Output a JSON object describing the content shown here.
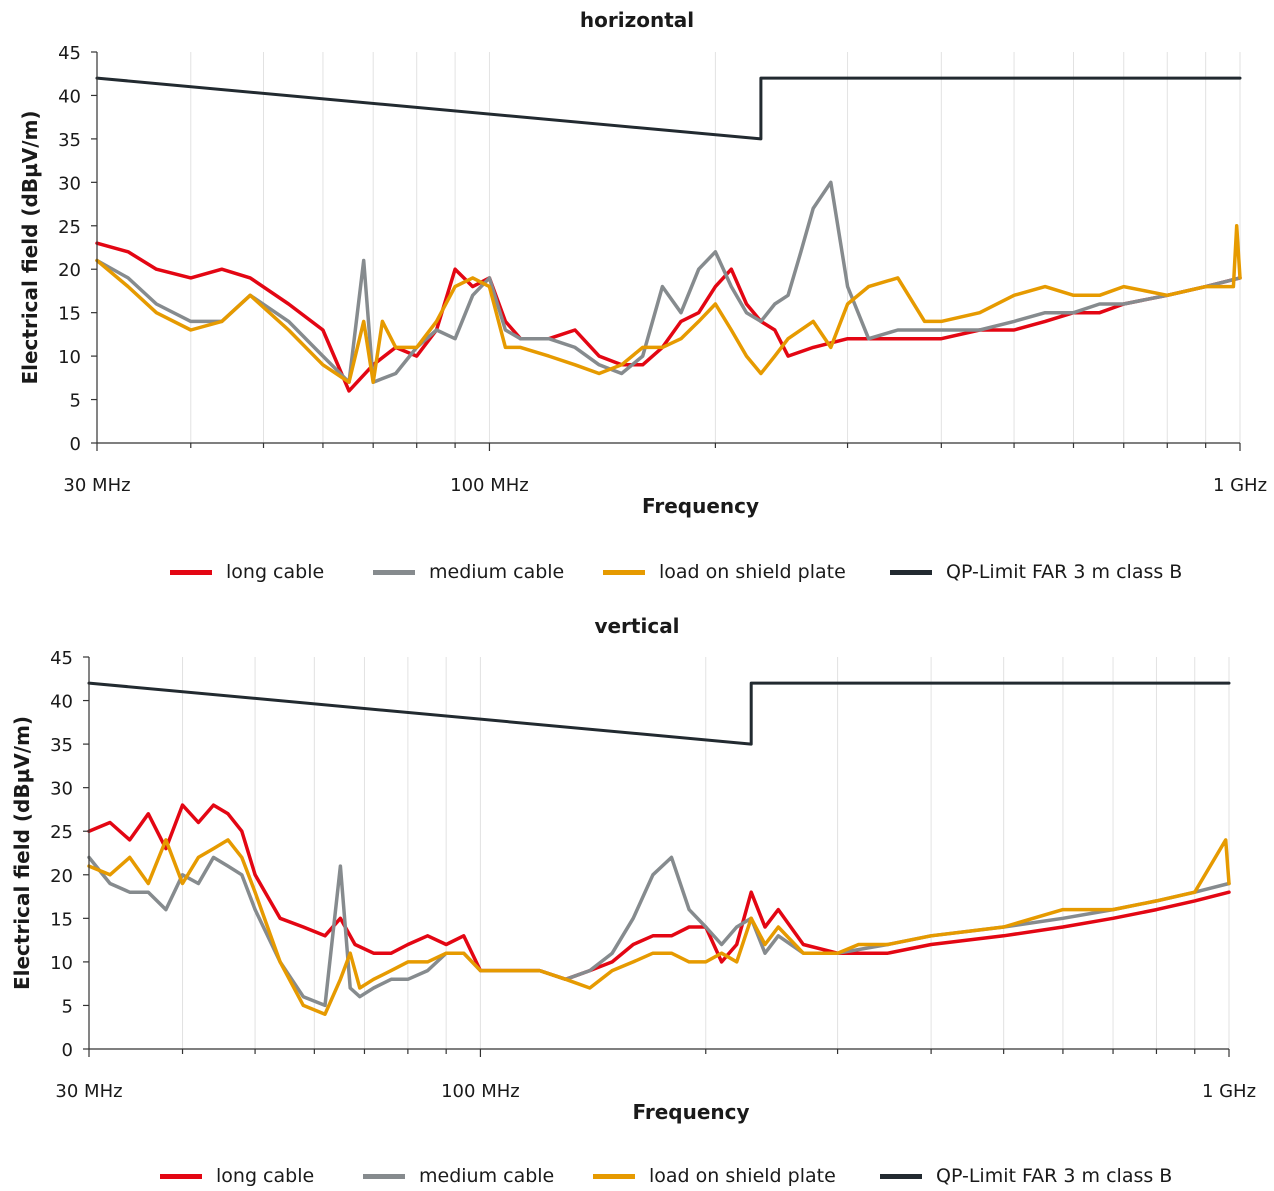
{
  "chart_data": [
    {
      "type": "line",
      "title": "horizontal",
      "xlabel": "Frequency",
      "ylabel": "Electrical field (dBµV/m)",
      "x_scale": "log",
      "xlim_mhz": [
        30,
        1000
      ],
      "ylim": [
        0,
        45
      ],
      "y_ticks": [
        0,
        5,
        10,
        15,
        20,
        25,
        30,
        35,
        40,
        45
      ],
      "x_tick_labels": [
        {
          "x": 30,
          "label": "30 MHz"
        },
        {
          "x": 100,
          "label": "100 MHz"
        },
        {
          "x": 1000,
          "label": "1 GHz"
        }
      ],
      "grid": true,
      "legend_position": "bottom",
      "series": [
        {
          "name": "long cable",
          "color": "#e30613",
          "x": [
            30,
            33,
            36,
            40,
            44,
            48,
            54,
            60,
            65,
            70,
            75,
            80,
            85,
            90,
            95,
            100,
            105,
            110,
            120,
            130,
            140,
            150,
            160,
            170,
            180,
            190,
            200,
            210,
            220,
            230,
            240,
            250,
            270,
            300,
            350,
            400,
            450,
            500,
            550,
            600,
            650,
            700,
            800,
            900,
            1000
          ],
          "y": [
            23,
            22,
            20,
            19,
            20,
            19,
            16,
            13,
            6,
            9,
            11,
            10,
            13,
            20,
            18,
            19,
            14,
            12,
            12,
            13,
            10,
            9,
            9,
            11,
            14,
            15,
            18,
            20,
            16,
            14,
            13,
            10,
            11,
            12,
            12,
            12,
            13,
            13,
            14,
            15,
            15,
            16,
            17,
            18,
            19
          ]
        },
        {
          "name": "medium cable",
          "color": "#868b8e",
          "x": [
            30,
            33,
            36,
            40,
            44,
            48,
            54,
            60,
            65,
            68,
            70,
            75,
            80,
            85,
            90,
            95,
            100,
            105,
            110,
            120,
            130,
            140,
            150,
            160,
            170,
            180,
            190,
            200,
            210,
            220,
            230,
            240,
            250,
            260,
            270,
            285,
            300,
            320,
            350,
            400,
            450,
            500,
            550,
            600,
            650,
            700,
            800,
            900,
            1000
          ],
          "y": [
            21,
            19,
            16,
            14,
            14,
            17,
            14,
            10,
            7,
            21,
            7,
            8,
            11,
            13,
            12,
            17,
            19,
            13,
            12,
            12,
            11,
            9,
            8,
            10,
            18,
            15,
            20,
            22,
            18,
            15,
            14,
            16,
            17,
            22,
            27,
            30,
            18,
            12,
            13,
            13,
            13,
            14,
            15,
            15,
            16,
            16,
            17,
            18,
            19
          ]
        },
        {
          "name": "load on shield plate",
          "color": "#e69a00",
          "x": [
            30,
            33,
            36,
            40,
            44,
            48,
            54,
            60,
            65,
            68,
            70,
            72,
            75,
            80,
            85,
            90,
            95,
            100,
            105,
            110,
            120,
            130,
            140,
            150,
            160,
            170,
            180,
            190,
            200,
            210,
            220,
            230,
            240,
            250,
            270,
            285,
            300,
            320,
            350,
            380,
            400,
            450,
            500,
            550,
            600,
            650,
            700,
            800,
            900,
            980,
            990,
            1000
          ],
          "y": [
            21,
            18,
            15,
            13,
            14,
            17,
            13,
            9,
            7,
            14,
            7,
            14,
            11,
            11,
            14,
            18,
            19,
            18,
            11,
            11,
            10,
            9,
            8,
            9,
            11,
            11,
            12,
            14,
            16,
            13,
            10,
            8,
            10,
            12,
            14,
            11,
            16,
            18,
            19,
            14,
            14,
            15,
            17,
            18,
            17,
            17,
            18,
            17,
            18,
            18,
            25,
            19
          ]
        },
        {
          "name": "QP-Limit FAR 3 m class B",
          "color": "#222a30",
          "x": [
            30,
            230,
            230,
            1000
          ],
          "y": [
            42,
            35,
            42,
            42
          ]
        }
      ]
    },
    {
      "type": "line",
      "title": "vertical",
      "xlabel": "Frequency",
      "ylabel": "Electrical field (dBµV/m)",
      "x_scale": "log",
      "xlim_mhz": [
        30,
        1000
      ],
      "ylim": [
        0,
        45
      ],
      "y_ticks": [
        0,
        5,
        10,
        15,
        20,
        25,
        30,
        35,
        40,
        45
      ],
      "x_tick_labels": [
        {
          "x": 30,
          "label": "30 MHz"
        },
        {
          "x": 100,
          "label": "100 MHz"
        },
        {
          "x": 1000,
          "label": "1 GHz"
        }
      ],
      "grid": true,
      "legend_position": "bottom",
      "series": [
        {
          "name": "long cable",
          "color": "#e30613",
          "x": [
            30,
            32,
            34,
            36,
            38,
            40,
            42,
            44,
            46,
            48,
            50,
            54,
            58,
            62,
            65,
            68,
            72,
            76,
            80,
            85,
            90,
            95,
            100,
            110,
            120,
            130,
            140,
            150,
            160,
            170,
            180,
            190,
            200,
            210,
            220,
            230,
            240,
            250,
            270,
            300,
            350,
            400,
            500,
            600,
            700,
            800,
            900,
            1000
          ],
          "y": [
            25,
            26,
            24,
            27,
            23,
            28,
            26,
            28,
            27,
            25,
            20,
            15,
            14,
            13,
            15,
            12,
            11,
            11,
            12,
            13,
            12,
            13,
            9,
            9,
            9,
            8,
            9,
            10,
            12,
            13,
            13,
            14,
            14,
            10,
            12,
            18,
            14,
            16,
            12,
            11,
            11,
            12,
            13,
            14,
            15,
            16,
            17,
            18
          ]
        },
        {
          "name": "medium cable",
          "color": "#868b8e",
          "x": [
            30,
            32,
            34,
            36,
            38,
            40,
            42,
            44,
            46,
            48,
            50,
            54,
            58,
            62,
            65,
            67,
            69,
            72,
            76,
            80,
            85,
            90,
            95,
            100,
            110,
            120,
            130,
            140,
            150,
            160,
            170,
            180,
            190,
            200,
            210,
            220,
            230,
            240,
            250,
            270,
            300,
            350,
            400,
            500,
            600,
            700,
            800,
            900,
            1000
          ],
          "y": [
            22,
            19,
            18,
            18,
            16,
            20,
            19,
            22,
            21,
            20,
            16,
            10,
            6,
            5,
            21,
            7,
            6,
            7,
            8,
            8,
            9,
            11,
            11,
            9,
            9,
            9,
            8,
            9,
            11,
            15,
            20,
            22,
            16,
            14,
            12,
            14,
            15,
            11,
            13,
            11,
            11,
            12,
            13,
            14,
            15,
            16,
            17,
            18,
            19
          ]
        },
        {
          "name": "load on shield plate",
          "color": "#e69a00",
          "x": [
            30,
            32,
            34,
            36,
            38,
            40,
            42,
            44,
            46,
            48,
            50,
            54,
            58,
            62,
            65,
            67,
            69,
            72,
            76,
            80,
            85,
            90,
            95,
            100,
            110,
            120,
            130,
            140,
            150,
            160,
            170,
            180,
            190,
            200,
            210,
            220,
            230,
            240,
            250,
            270,
            300,
            320,
            350,
            400,
            500,
            600,
            700,
            800,
            900,
            990,
            1000
          ],
          "y": [
            21,
            20,
            22,
            19,
            24,
            19,
            22,
            23,
            24,
            22,
            18,
            10,
            5,
            4,
            8,
            11,
            7,
            8,
            9,
            10,
            10,
            11,
            11,
            9,
            9,
            9,
            8,
            7,
            9,
            10,
            11,
            11,
            10,
            10,
            11,
            10,
            15,
            12,
            14,
            11,
            11,
            12,
            12,
            13,
            14,
            16,
            16,
            17,
            18,
            24,
            19
          ]
        },
        {
          "name": "QP-Limit FAR 3 m class B",
          "color": "#222a30",
          "x": [
            30,
            230,
            230,
            1000
          ],
          "y": [
            42,
            35,
            42,
            42
          ]
        }
      ]
    }
  ]
}
